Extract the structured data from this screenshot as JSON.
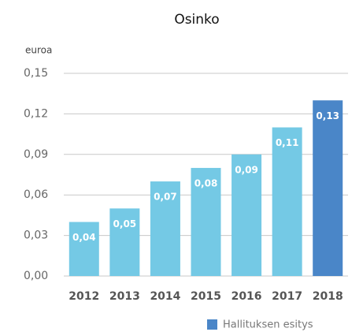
{
  "chart_data": {
    "type": "bar",
    "title": "Osinko",
    "y_label": "euroa",
    "categories": [
      "2012",
      "2013",
      "2014",
      "2015",
      "2016",
      "2017",
      "2018"
    ],
    "values": [
      0.04,
      0.05,
      0.07,
      0.08,
      0.09,
      0.11,
      0.13
    ],
    "value_labels": [
      "0,04",
      "0,05",
      "0,07",
      "0,08",
      "0,09",
      "0,11",
      "0,13"
    ],
    "colors": [
      "#74c9e5",
      "#74c9e5",
      "#74c9e5",
      "#74c9e5",
      "#74c9e5",
      "#74c9e5",
      "#4a86c8"
    ],
    "ylim": [
      0,
      0.15
    ],
    "yticks": [
      {
        "value": 0,
        "label": "0,00"
      },
      {
        "value": 0.03,
        "label": "0,03"
      },
      {
        "value": 0.06,
        "label": "0,06"
      },
      {
        "value": 0.09,
        "label": "0,09"
      },
      {
        "value": 0.12,
        "label": "0,12"
      },
      {
        "value": 0.15,
        "label": "0,15"
      }
    ],
    "grid": true,
    "legend": {
      "label": "Hallituksen esitys",
      "color": "#4a86c8"
    }
  }
}
